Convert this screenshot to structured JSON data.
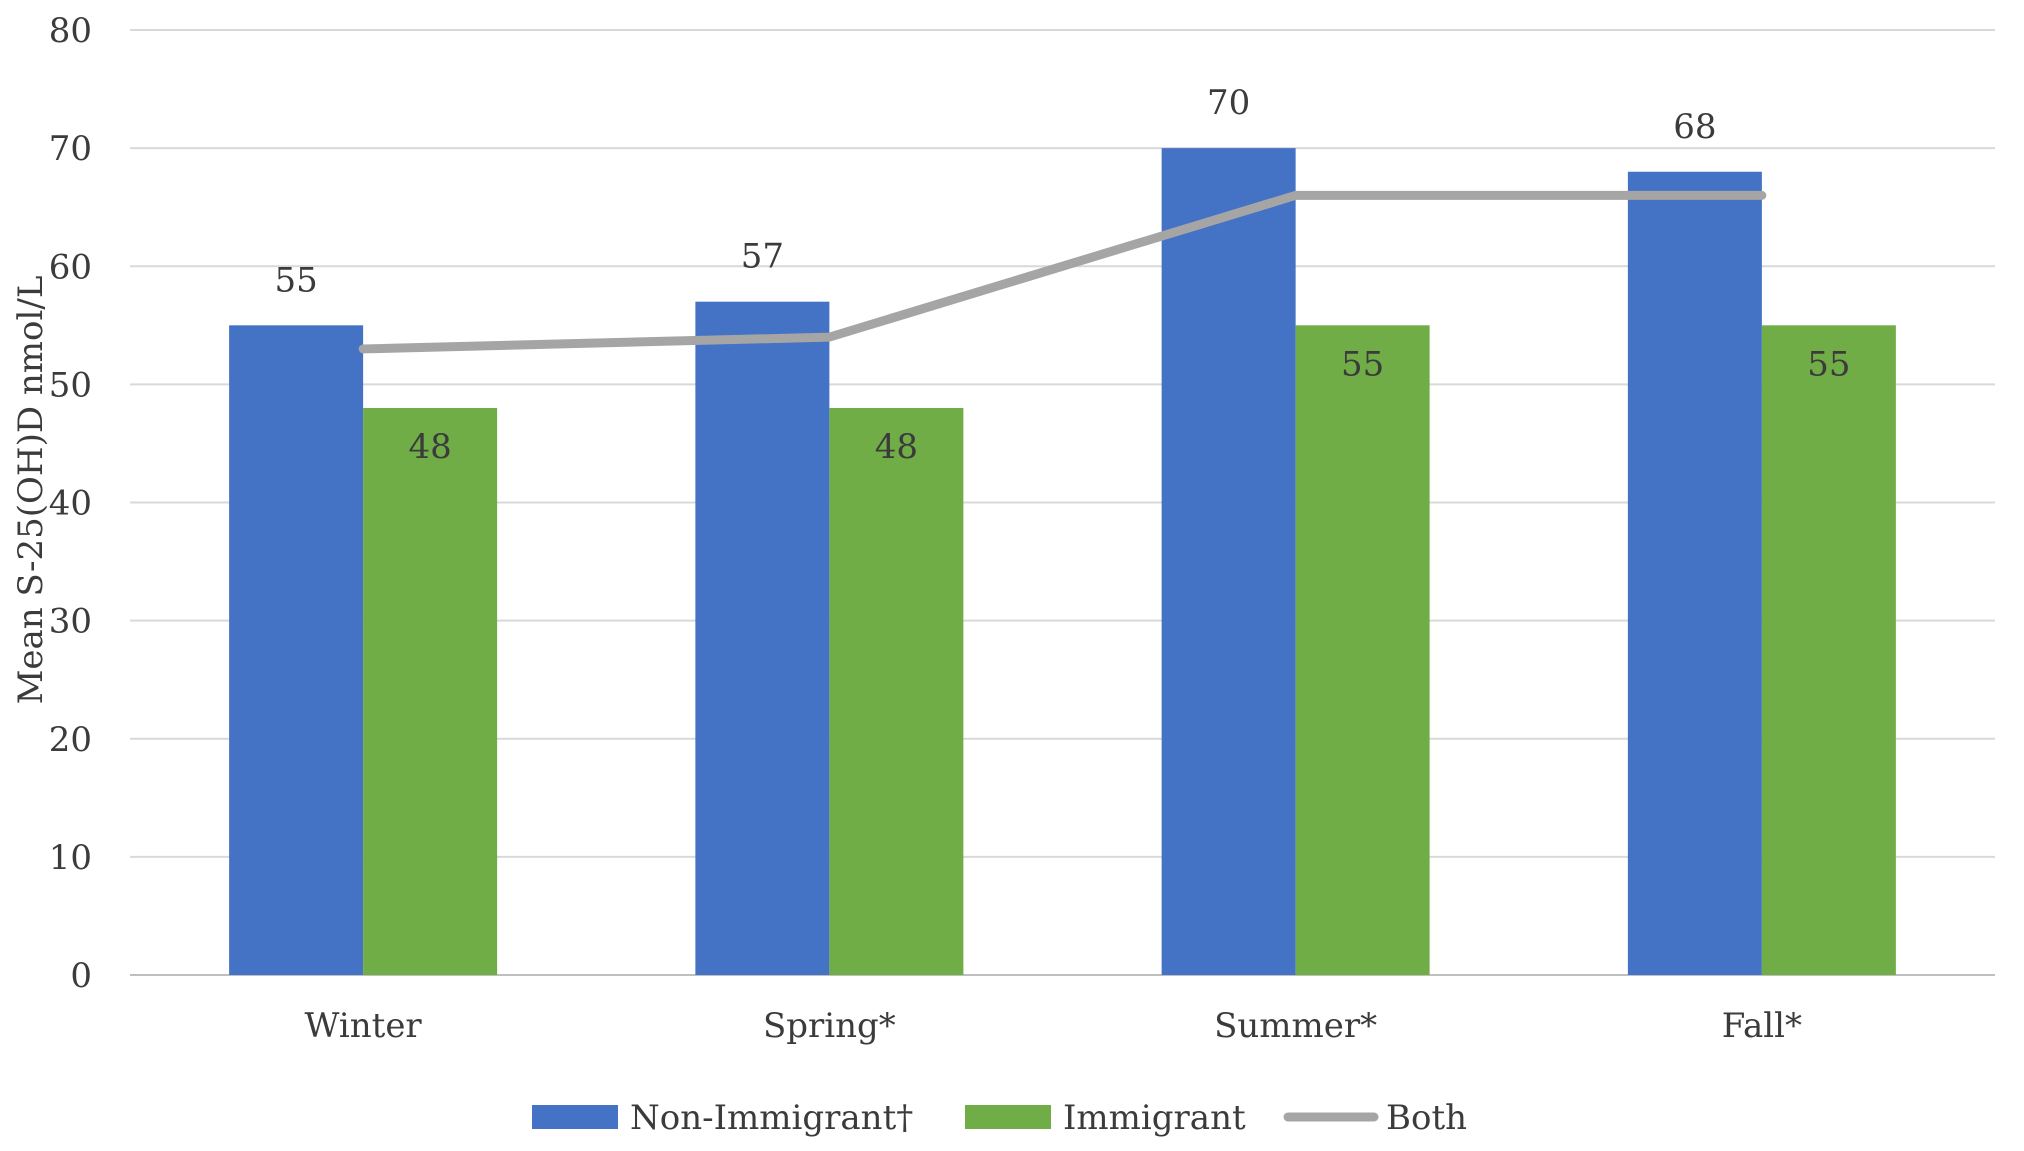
{
  "chart_data": {
    "type": "bar",
    "title": "",
    "xlabel": "",
    "ylabel": "Mean S-25(OH)D nmol/L",
    "ylim": [
      0,
      80
    ],
    "yticks": [
      0,
      10,
      20,
      30,
      40,
      50,
      60,
      70,
      80
    ],
    "grid": true,
    "legend_position": "bottom",
    "categories": [
      "Winter",
      "Spring*",
      "Summer*",
      "Fall*"
    ],
    "series": [
      {
        "name": "Non-Immigrant†",
        "kind": "bar",
        "color": "#4472c4",
        "values": [
          55,
          57,
          70,
          68
        ],
        "labels": [
          "55",
          "57",
          "70",
          "68"
        ]
      },
      {
        "name": "Immigrant",
        "kind": "bar",
        "color": "#70ad47",
        "values": [
          48,
          48,
          55,
          55
        ],
        "labels": [
          "48",
          "48",
          "55",
          "55"
        ]
      },
      {
        "name": "Both",
        "kind": "line",
        "color": "#a5a5a5",
        "values": [
          53,
          54,
          66,
          66
        ]
      }
    ]
  }
}
